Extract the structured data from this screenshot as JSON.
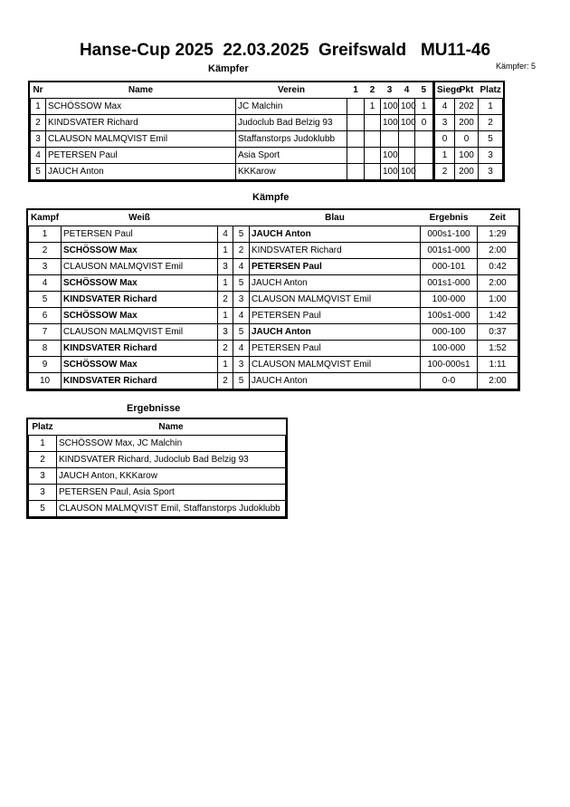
{
  "title": "Hanse-Cup 2025  22.03.2025  Greifswald   MU11-46",
  "fighters": {
    "heading": "Kämpfer",
    "count_label": "Kämpfer: 5",
    "columns": [
      "Nr",
      "Name",
      "Verein",
      "1",
      "2",
      "3",
      "4",
      "5",
      "Siege",
      "Pkt",
      "Platz"
    ],
    "rows": [
      [
        "1",
        "SCHÖSSOW Max",
        "JC Malchin",
        "",
        "1",
        "100",
        "100",
        "1",
        "4",
        "202",
        "1"
      ],
      [
        "2",
        "KINDSVATER Richard",
        "Judoclub Bad Belzig 93",
        "",
        "",
        "100",
        "100",
        "0",
        "3",
        "200",
        "2"
      ],
      [
        "3",
        "CLAUSON MALMQVIST Emil",
        "Staffanstorps Judoklubb",
        "",
        "",
        "",
        "",
        "",
        "0",
        "0",
        "5"
      ],
      [
        "4",
        "PETERSEN Paul",
        "Asia Sport",
        "",
        "",
        "100",
        "",
        "",
        "1",
        "100",
        "3"
      ],
      [
        "5",
        "JAUCH Anton",
        "KKKarow",
        "",
        "",
        "100",
        "100",
        "",
        "2",
        "200",
        "3"
      ]
    ]
  },
  "fights": {
    "heading": "Kämpfe",
    "columns": [
      "Kampf",
      "Weiß",
      "Blau",
      "Ergebnis",
      "Zeit"
    ],
    "rows": [
      {
        "n": "1",
        "white": "PETERSEN Paul",
        "w": "4",
        "b": "5",
        "blue": "JAUCH Anton",
        "result": "000s1-100",
        "time": "1:29",
        "winner": "blue"
      },
      {
        "n": "2",
        "white": "SCHÖSSOW Max",
        "w": "1",
        "b": "2",
        "blue": "KINDSVATER Richard",
        "result": "001s1-000",
        "time": "2:00",
        "winner": "white"
      },
      {
        "n": "3",
        "white": "CLAUSON MALMQVIST Emil",
        "w": "3",
        "b": "4",
        "blue": "PETERSEN Paul",
        "result": "000-101",
        "time": "0:42",
        "winner": "blue"
      },
      {
        "n": "4",
        "white": "SCHÖSSOW Max",
        "w": "1",
        "b": "5",
        "blue": "JAUCH Anton",
        "result": "001s1-000",
        "time": "2:00",
        "winner": "white"
      },
      {
        "n": "5",
        "white": "KINDSVATER Richard",
        "w": "2",
        "b": "3",
        "blue": "CLAUSON MALMQVIST Emil",
        "result": "100-000",
        "time": "1:00",
        "winner": "white"
      },
      {
        "n": "6",
        "white": "SCHÖSSOW Max",
        "w": "1",
        "b": "4",
        "blue": "PETERSEN Paul",
        "result": "100s1-000",
        "time": "1:42",
        "winner": "white"
      },
      {
        "n": "7",
        "white": "CLAUSON MALMQVIST Emil",
        "w": "3",
        "b": "5",
        "blue": "JAUCH Anton",
        "result": "000-100",
        "time": "0:37",
        "winner": "blue"
      },
      {
        "n": "8",
        "white": "KINDSVATER Richard",
        "w": "2",
        "b": "4",
        "blue": "PETERSEN Paul",
        "result": "100-000",
        "time": "1:52",
        "winner": "white"
      },
      {
        "n": "9",
        "white": "SCHÖSSOW Max",
        "w": "1",
        "b": "3",
        "blue": "CLAUSON MALMQVIST Emil",
        "result": "100-000s1",
        "time": "1:11",
        "winner": "white"
      },
      {
        "n": "10",
        "white": "KINDSVATER Richard",
        "w": "2",
        "b": "5",
        "blue": "JAUCH Anton",
        "result": "0-0",
        "time": "2:00",
        "winner": "white"
      }
    ]
  },
  "results": {
    "heading": "Ergebnisse",
    "columns": [
      "Platz",
      "Name"
    ],
    "rows": [
      [
        "1",
        "SCHÖSSOW Max, JC Malchin"
      ],
      [
        "2",
        "KINDSVATER Richard, Judoclub Bad Belzig 93"
      ],
      [
        "3",
        "JAUCH Anton, KKKarow"
      ],
      [
        "3",
        "PETERSEN Paul, Asia Sport"
      ],
      [
        "5",
        "CLAUSON MALMQVIST Emil, Staffanstorps Judoklubb"
      ]
    ]
  }
}
